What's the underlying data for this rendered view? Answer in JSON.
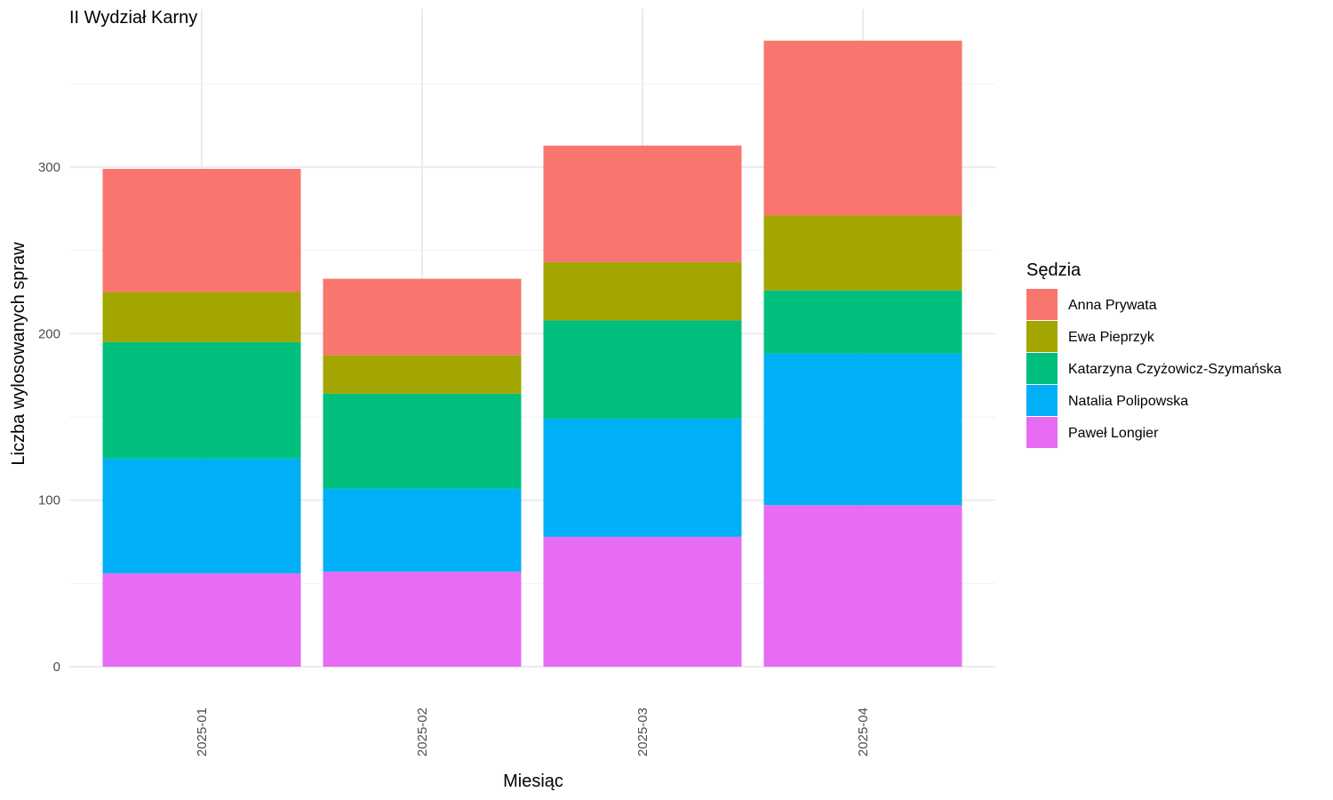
{
  "chart_data": {
    "type": "bar",
    "stacked": true,
    "title": "II Wydział Karny",
    "xlabel": "Miesiąc",
    "ylabel": "Liczba wylosowanych spraw",
    "categories": [
      "2025-01",
      "2025-02",
      "2025-03",
      "2025-04"
    ],
    "ylim": [
      0,
      400
    ],
    "yticks": [
      0,
      100,
      200,
      300
    ],
    "grid": true,
    "legend": {
      "title": "Sędzia",
      "position": "right"
    },
    "series": [
      {
        "name": "Paweł Longier",
        "color": "#E76BF3",
        "values": [
          56,
          57,
          78,
          97
        ]
      },
      {
        "name": "Natalia Polipowska",
        "color": "#00B0F6",
        "values": [
          69,
          50,
          71,
          91
        ]
      },
      {
        "name": "Katarzyna Czyżowicz-Szymańska",
        "color": "#00BF7D",
        "values": [
          70,
          57,
          59,
          38
        ]
      },
      {
        "name": "Ewa Pieprzyk",
        "color": "#A3A500",
        "values": [
          30,
          23,
          35,
          45
        ]
      },
      {
        "name": "Anna Prywata",
        "color": "#F8766D",
        "values": [
          74,
          46,
          70,
          105
        ]
      }
    ]
  }
}
